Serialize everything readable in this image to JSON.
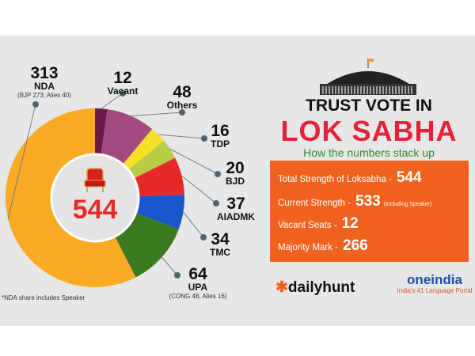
{
  "chart_data": {
    "type": "donut",
    "total_label": "544",
    "direction": "clockwise from top",
    "slices": [
      {
        "name": "Vacant",
        "value": 12,
        "color": "#6b1a48"
      },
      {
        "name": "Others",
        "value": 48,
        "color": "#a04a80"
      },
      {
        "name": "TDP",
        "value": 16,
        "color": "#f6e025"
      },
      {
        "name": "BJD",
        "value": 20,
        "color": "#b8cc45"
      },
      {
        "name": "AIADMK",
        "value": 37,
        "color": "#e8292a"
      },
      {
        "name": "TMC",
        "value": 34,
        "color": "#1a56cc"
      },
      {
        "name": "UPA",
        "value": 64,
        "color": "#3c7a22",
        "sub": "(CONG 48, Alies 16)"
      },
      {
        "name": "NDA",
        "value": 313,
        "color": "#fbaa24",
        "sub": "(BJP 273, Alies 40)"
      }
    ],
    "footnote": "*NDA share includes Speaker"
  },
  "header": {
    "line1": "TRUST VOTE IN",
    "line2": "LOK SABHA",
    "subtitle": "How the numbers stack up"
  },
  "facts": [
    {
      "label": "Total Strength of Loksabha -",
      "value": "544"
    },
    {
      "label": "Current Strength -",
      "value": "533",
      "note": "(Including Speaker)"
    },
    {
      "label": "Vacant Seats -",
      "value": "12"
    },
    {
      "label": "Majority Mark -",
      "value": "266"
    }
  ],
  "logos": {
    "left": "dailyhunt",
    "right": "oneindia",
    "right_tagline": "India's #1 Language Portal"
  },
  "colors": {
    "accent_red": "#e8213a",
    "box_orange": "#f2621f",
    "subtitle_green": "#2f8a2f"
  }
}
